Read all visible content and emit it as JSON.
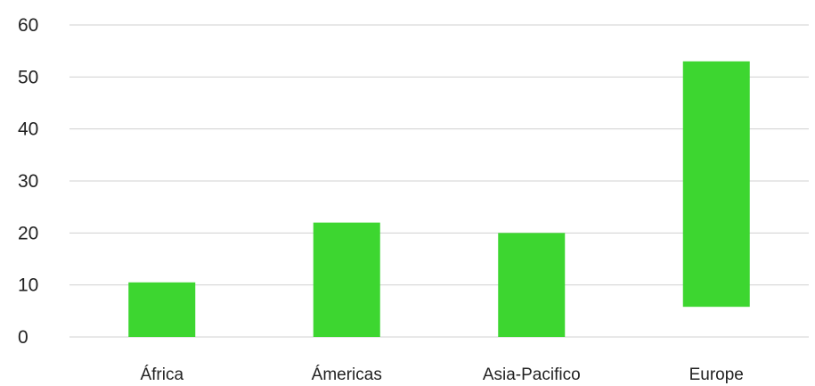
{
  "chart_data": {
    "type": "bar",
    "categories": [
      "África",
      "Ámericas",
      "Asia-Pacifico",
      "Europe"
    ],
    "bars": [
      {
        "low": 0,
        "high": 10.5
      },
      {
        "low": 0,
        "high": 22
      },
      {
        "low": 0,
        "high": 20
      },
      {
        "low": 5.8,
        "high": 53
      }
    ],
    "title": "",
    "xlabel": "",
    "ylabel": "",
    "ylim": [
      0,
      60
    ],
    "yticks": [
      0,
      10,
      20,
      30,
      40,
      50,
      60
    ],
    "grid": true,
    "legend": "none",
    "bar_color": "#3dd630",
    "grid_color": "#d0d0d0",
    "text_color": "#222222"
  }
}
